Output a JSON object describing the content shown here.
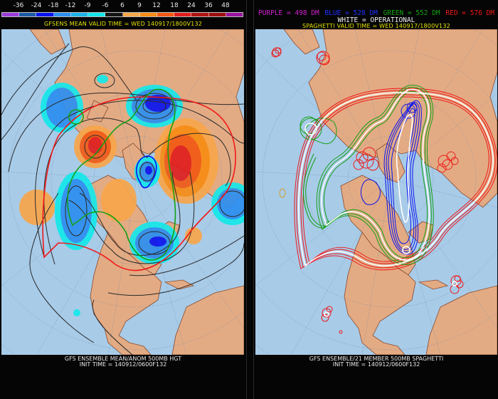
{
  "left_panel": {
    "legend": {
      "labels": [
        "-36",
        "-24",
        "-18",
        "-12",
        "-9",
        "-6",
        "6",
        "9",
        "12",
        "18",
        "24",
        "36",
        "48"
      ],
      "swatch_colors": [
        "#9b3ddb",
        "#1f5aa8",
        "#0a14f0",
        "#2c8ff0",
        "#1db4ea",
        "#14e8ea",
        "#141414",
        "#f8a64a",
        "#f88c14",
        "#f25a14",
        "#e01e1e",
        "#b01414",
        "#a01010",
        "#9a14a0"
      ]
    },
    "valid_time": "GFSENS MEAN VALID TIME = WED 140917/1800V132",
    "caption_line1": "GFS ENSEMBLE MEAN/ANOM 500MB HGT",
    "caption_line2": "INIT TIME = 140912/0600F132"
  },
  "right_panel": {
    "legend_items": [
      {
        "text": "PURPLE = 498 DM",
        "color": "#d020d0"
      },
      {
        "text": "BLUE = 528 DM",
        "color": "#2030ff"
      },
      {
        "text": "GREEN = 552 DM",
        "color": "#14a014"
      },
      {
        "text": "RED = 576 DM",
        "color": "#f01818"
      }
    ],
    "operational_label": "WHITE = OPERATIONAL",
    "valid_time": "SPAGHETTI VALID TIME = WED 140917/1800V132",
    "caption_line1": "GFS ENSEMBLE/21 MEMBER 500MB SPAGHETTI",
    "caption_line2": "INIT TIME = 140912/0600F132"
  },
  "colors": {
    "ocean": "#a8cbe8",
    "land": "#e3ab84",
    "border": "#8b4a2b",
    "graticule": "#6a8aa8",
    "contour": "#2a2a2a"
  }
}
